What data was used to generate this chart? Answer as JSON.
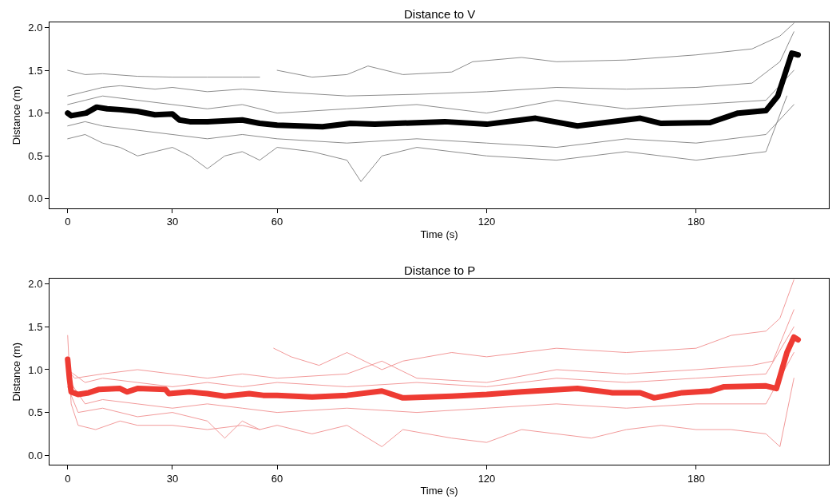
{
  "chart_data": [
    {
      "type": "line",
      "title": "Distance to V",
      "xlabel": "Time (s)",
      "ylabel": "Distance (m)",
      "xlim": [
        -5.2,
        218
      ],
      "ylim": [
        -0.11,
        2.06
      ],
      "xticks": [
        0,
        30,
        60,
        120,
        180
      ],
      "yticks": [
        {
          "value": 0,
          "label": "0.0"
        },
        {
          "value": 0.5,
          "label": "0.5"
        },
        {
          "value": 1,
          "label": "1.0"
        },
        {
          "value": 1.5,
          "label": "1.5"
        },
        {
          "value": 2,
          "label": "2.0"
        }
      ],
      "marker": "none",
      "line_style": "solid",
      "series": [
        {
          "color": "#8c8c8c",
          "x": [
            0,
            5,
            10,
            20,
            30,
            40,
            50,
            55
          ],
          "values": [
            1.5,
            1.45,
            1.46,
            1.43,
            1.42,
            1.42,
            1.42,
            1.42
          ]
        },
        {
          "color": "#8c8c8c",
          "x": [
            60,
            70,
            80,
            86,
            96,
            110,
            116,
            130,
            140,
            160,
            180,
            196,
            204,
            208
          ],
          "values": [
            1.5,
            1.42,
            1.45,
            1.55,
            1.45,
            1.48,
            1.6,
            1.65,
            1.6,
            1.62,
            1.68,
            1.75,
            1.9,
            2.05
          ]
        },
        {
          "color": "#8c8c8c",
          "x": [
            0,
            5,
            10,
            15,
            20,
            25,
            30,
            40,
            50,
            60,
            80,
            100,
            120,
            140,
            160,
            180,
            196,
            204,
            208
          ],
          "values": [
            1.2,
            1.25,
            1.3,
            1.32,
            1.3,
            1.28,
            1.3,
            1.25,
            1.28,
            1.25,
            1.2,
            1.22,
            1.25,
            1.3,
            1.28,
            1.3,
            1.35,
            1.6,
            1.95
          ]
        },
        {
          "color": "#8c8c8c",
          "x": [
            0,
            5,
            10,
            15,
            20,
            25,
            30,
            35,
            40,
            45,
            50,
            55,
            60,
            70,
            80,
            84,
            90,
            100,
            120,
            140,
            160,
            170,
            180,
            190,
            200,
            206
          ],
          "values": [
            0.7,
            0.75,
            0.65,
            0.6,
            0.5,
            0.55,
            0.6,
            0.5,
            0.35,
            0.5,
            0.55,
            0.45,
            0.6,
            0.55,
            0.45,
            0.2,
            0.5,
            0.6,
            0.5,
            0.45,
            0.55,
            0.5,
            0.45,
            0.5,
            0.55,
            1.2
          ]
        },
        {
          "color": "#8c8c8c",
          "x": [
            0,
            5,
            10,
            20,
            30,
            40,
            50,
            60,
            80,
            100,
            120,
            140,
            160,
            180,
            200,
            208
          ],
          "values": [
            0.85,
            0.9,
            0.85,
            0.8,
            0.75,
            0.7,
            0.75,
            0.7,
            0.65,
            0.7,
            0.65,
            0.6,
            0.7,
            0.65,
            0.75,
            1.1
          ]
        },
        {
          "color": "#8c8c8c",
          "x": [
            0,
            5,
            10,
            20,
            30,
            40,
            50,
            60,
            80,
            100,
            120,
            140,
            160,
            180,
            200,
            208
          ],
          "values": [
            1.1,
            1.15,
            1.2,
            1.15,
            1.1,
            1.05,
            1.1,
            1.0,
            1.05,
            1.1,
            1.0,
            1.15,
            1.05,
            1.1,
            1.15,
            1.5
          ]
        },
        {
          "color": "#000000",
          "x": [
            0,
            1,
            5.3,
            8.3,
            11.3,
            15.2,
            20,
            25,
            30,
            32,
            35,
            40,
            50,
            55,
            60,
            73,
            81,
            88,
            108,
            120,
            134,
            146,
            164,
            170,
            184,
            192,
            200,
            203.4,
            207.4,
            209.2
          ],
          "values": [
            1.0,
            0.97,
            1.0,
            1.07,
            1.05,
            1.04,
            1.02,
            0.98,
            0.99,
            0.92,
            0.9,
            0.9,
            0.92,
            0.88,
            0.86,
            0.84,
            0.88,
            0.87,
            0.9,
            0.87,
            0.94,
            0.85,
            0.94,
            0.88,
            0.89,
            1.0,
            1.03,
            1.2,
            1.7,
            1.68
          ]
        }
      ]
    },
    {
      "type": "line",
      "title": "Distance to P",
      "xlabel": "Time (s)",
      "ylabel": "Distance (m)",
      "xlim": [
        -5.2,
        218
      ],
      "ylim": [
        -0.11,
        2.06
      ],
      "xticks": [
        0,
        30,
        60,
        120,
        180
      ],
      "yticks": [
        {
          "value": 0,
          "label": "0.0"
        },
        {
          "value": 0.5,
          "label": "0.5"
        },
        {
          "value": 1,
          "label": "1.0"
        },
        {
          "value": 1.5,
          "label": "1.5"
        },
        {
          "value": 2,
          "label": "2.0"
        }
      ],
      "marker": "none",
      "line_style": "solid",
      "series": [
        {
          "color": "#f29a9a",
          "x": [
            0,
            1,
            3,
            8,
            15,
            20,
            30,
            40,
            50,
            55
          ],
          "values": [
            1.4,
            0.6,
            0.35,
            0.3,
            0.4,
            0.35,
            0.35,
            0.3,
            0.35,
            0.3
          ]
        },
        {
          "color": "#f29a9a",
          "x": [
            59,
            64,
            72,
            80,
            90,
            96,
            110,
            120,
            130,
            140,
            160,
            180,
            190,
            200,
            204,
            208
          ],
          "values": [
            1.25,
            1.15,
            1.05,
            1.2,
            1.0,
            1.1,
            1.2,
            1.15,
            1.2,
            1.25,
            1.2,
            1.25,
            1.4,
            1.45,
            1.6,
            2.05
          ]
        },
        {
          "color": "#f29a9a",
          "x": [
            0,
            2,
            10,
            20,
            30,
            40,
            50,
            60,
            80,
            90,
            100,
            120,
            140,
            160,
            180,
            196,
            202,
            208
          ],
          "values": [
            1.0,
            0.9,
            0.95,
            1.0,
            0.95,
            0.9,
            0.95,
            0.9,
            0.95,
            1.1,
            0.9,
            0.85,
            1.0,
            0.95,
            1.0,
            1.05,
            1.1,
            1.7
          ]
        },
        {
          "color": "#f29a9a",
          "x": [
            0,
            3,
            10,
            20,
            30,
            40,
            45,
            50,
            55,
            60,
            70,
            80,
            90,
            96,
            110,
            120,
            130,
            140,
            150,
            160,
            170,
            180,
            190,
            200,
            204,
            208
          ],
          "values": [
            0.8,
            0.5,
            0.55,
            0.45,
            0.5,
            0.4,
            0.2,
            0.4,
            0.3,
            0.35,
            0.25,
            0.35,
            0.1,
            0.3,
            0.2,
            0.15,
            0.3,
            0.25,
            0.2,
            0.3,
            0.35,
            0.3,
            0.3,
            0.25,
            0.1,
            0.9
          ]
        },
        {
          "color": "#f29a9a",
          "x": [
            0,
            5,
            10,
            20,
            30,
            40,
            50,
            60,
            80,
            100,
            120,
            140,
            160,
            180,
            200,
            208
          ],
          "values": [
            0.9,
            0.6,
            0.65,
            0.6,
            0.55,
            0.6,
            0.55,
            0.5,
            0.55,
            0.5,
            0.55,
            0.6,
            0.55,
            0.6,
            0.6,
            1.2
          ]
        },
        {
          "color": "#f29a9a",
          "x": [
            0,
            5,
            10,
            20,
            30,
            40,
            50,
            60,
            80,
            100,
            120,
            140,
            160,
            180,
            200,
            208
          ],
          "values": [
            1.0,
            0.85,
            0.9,
            0.85,
            0.8,
            0.85,
            0.8,
            0.85,
            0.8,
            0.85,
            0.8,
            0.9,
            0.85,
            0.9,
            0.95,
            1.5
          ]
        },
        {
          "color": "#ee3b33",
          "x": [
            0,
            0.5,
            1,
            3,
            6,
            9,
            15,
            17,
            20,
            28,
            29,
            35,
            40,
            45,
            52,
            56,
            60,
            70,
            80,
            90,
            96,
            110,
            120,
            130,
            146,
            156,
            164,
            168,
            176,
            184,
            188,
            200,
            203,
            206,
            208,
            209.2
          ],
          "values": [
            1.12,
            0.9,
            0.74,
            0.71,
            0.73,
            0.77,
            0.78,
            0.74,
            0.78,
            0.77,
            0.72,
            0.74,
            0.72,
            0.69,
            0.72,
            0.7,
            0.7,
            0.68,
            0.7,
            0.75,
            0.67,
            0.69,
            0.71,
            0.74,
            0.78,
            0.73,
            0.73,
            0.67,
            0.73,
            0.75,
            0.8,
            0.81,
            0.78,
            1.2,
            1.38,
            1.35
          ]
        }
      ]
    }
  ]
}
